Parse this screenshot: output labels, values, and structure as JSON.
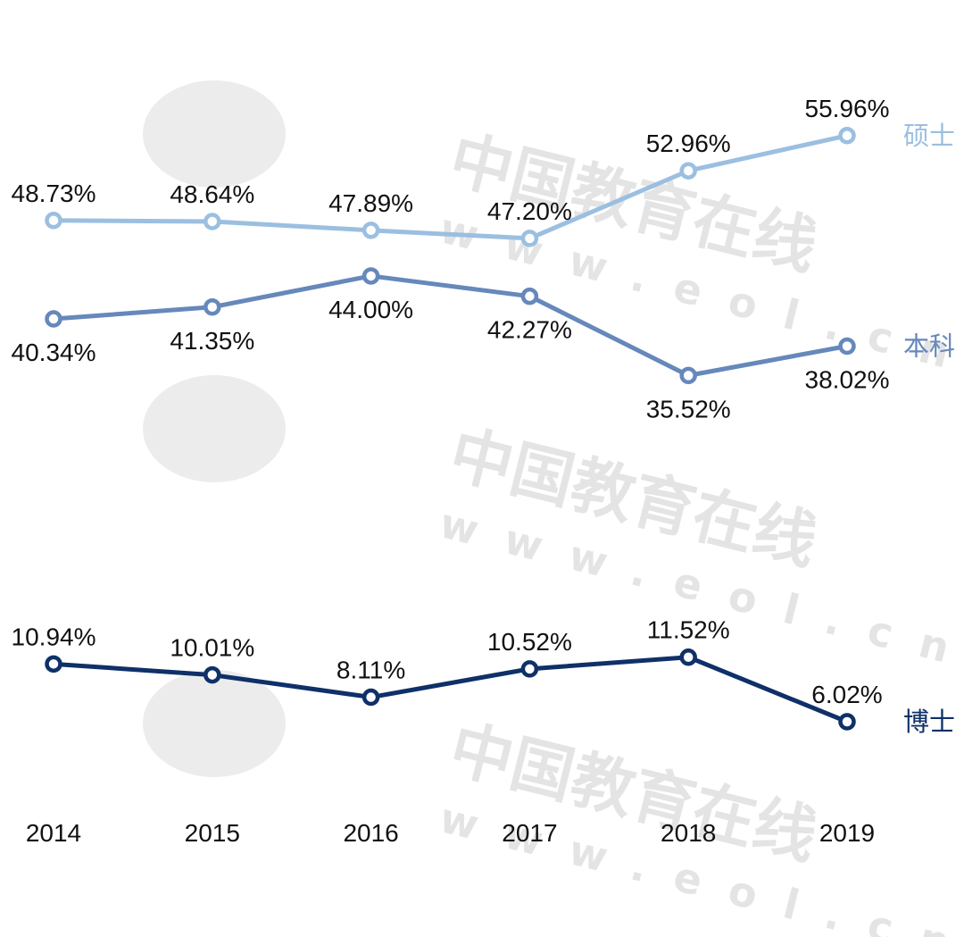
{
  "watermark": {
    "text": "中国教育在线",
    "url": "www.eol.cn",
    "logo": "eol"
  },
  "chart_data": {
    "type": "line",
    "title": "",
    "xlabel": "",
    "ylabel": "",
    "categories": [
      "2014",
      "2015",
      "2016",
      "2017",
      "2018",
      "2019"
    ],
    "ylim": [
      0,
      67.5
    ],
    "grid": false,
    "legend": "series names at right end of lines",
    "series": [
      {
        "name": "硕士",
        "color": "#9bbfe0",
        "values": [
          48.73,
          48.64,
          47.89,
          47.2,
          52.96,
          55.96
        ],
        "labels": [
          "48.73%",
          "48.64%",
          "47.89%",
          "47.20%",
          "52.96%",
          "55.96%"
        ],
        "label_position": "above"
      },
      {
        "name": "本科",
        "color": "#6688bb",
        "values": [
          40.34,
          41.35,
          44.0,
          42.27,
          35.52,
          38.02
        ],
        "labels": [
          "40.34%",
          "41.35%",
          "44.00%",
          "42.27%",
          "35.52%",
          "38.02%"
        ],
        "label_position": "below"
      },
      {
        "name": "博士",
        "color": "#0f3068",
        "values": [
          10.94,
          10.01,
          8.11,
          10.52,
          11.52,
          6.02
        ],
        "labels": [
          "10.94%",
          "10.01%",
          "8.11%",
          "10.52%",
          "11.52%",
          "6.02%"
        ],
        "label_position": "above"
      }
    ]
  }
}
